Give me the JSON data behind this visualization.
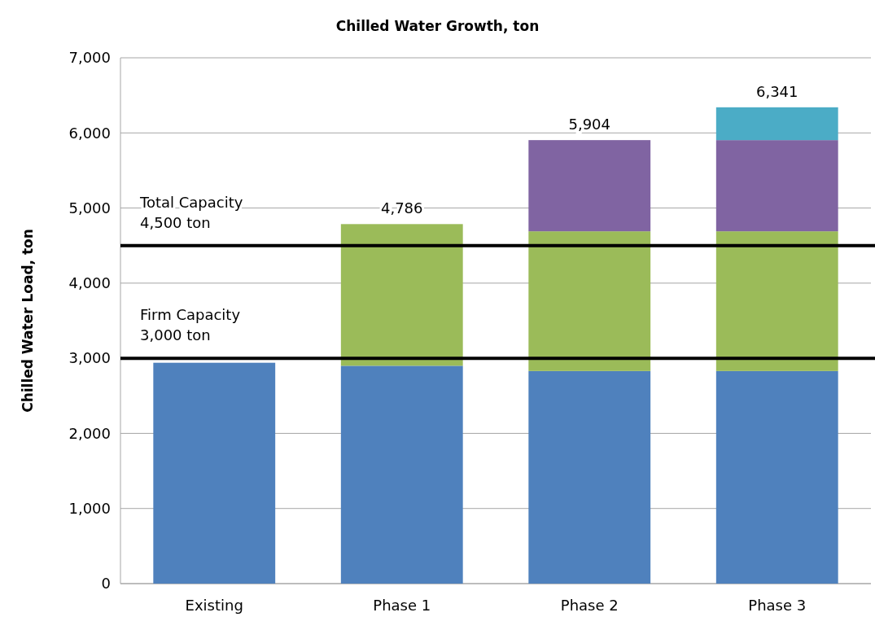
{
  "chart_data": {
    "type": "bar",
    "title": "Chilled Water Growth, ton",
    "ylabel": "Chilled Water Load, ton",
    "categories": [
      "Existing",
      "Phase 1",
      "Phase 2",
      "Phase 3"
    ],
    "stacked": true,
    "series": [
      {
        "color": "#4f81bd",
        "values": [
          2940,
          2900,
          2830,
          2830
        ]
      },
      {
        "color": "#9bbb59",
        "values": [
          null,
          1886,
          1860,
          1860
        ]
      },
      {
        "color": "#8064a2",
        "values": [
          null,
          null,
          1214,
          1214
        ]
      },
      {
        "color": "#4bacc6",
        "values": [
          null,
          null,
          null,
          437
        ]
      }
    ],
    "totals": [
      null,
      "4,786",
      "5,904",
      "6,341"
    ],
    "ylim": [
      0,
      7000
    ],
    "yticks": [
      {
        "value": 0,
        "label": "0"
      },
      {
        "value": 1000,
        "label": "1,000"
      },
      {
        "value": 2000,
        "label": "2,000"
      },
      {
        "value": 3000,
        "label": "3,000"
      },
      {
        "value": 4000,
        "label": "4,000"
      },
      {
        "value": 5000,
        "label": "5,000"
      },
      {
        "value": 6000,
        "label": "6,000"
      },
      {
        "value": 7000,
        "label": "7,000"
      }
    ],
    "grid": "y",
    "ref_lines": [
      {
        "axis": "y",
        "value": 4500,
        "label": "Total Capacity\n4,500 ton",
        "color": "#000000"
      },
      {
        "axis": "y",
        "value": 3000,
        "label": "Firm Capacity\n3,000 ton",
        "color": "#000000"
      }
    ]
  }
}
